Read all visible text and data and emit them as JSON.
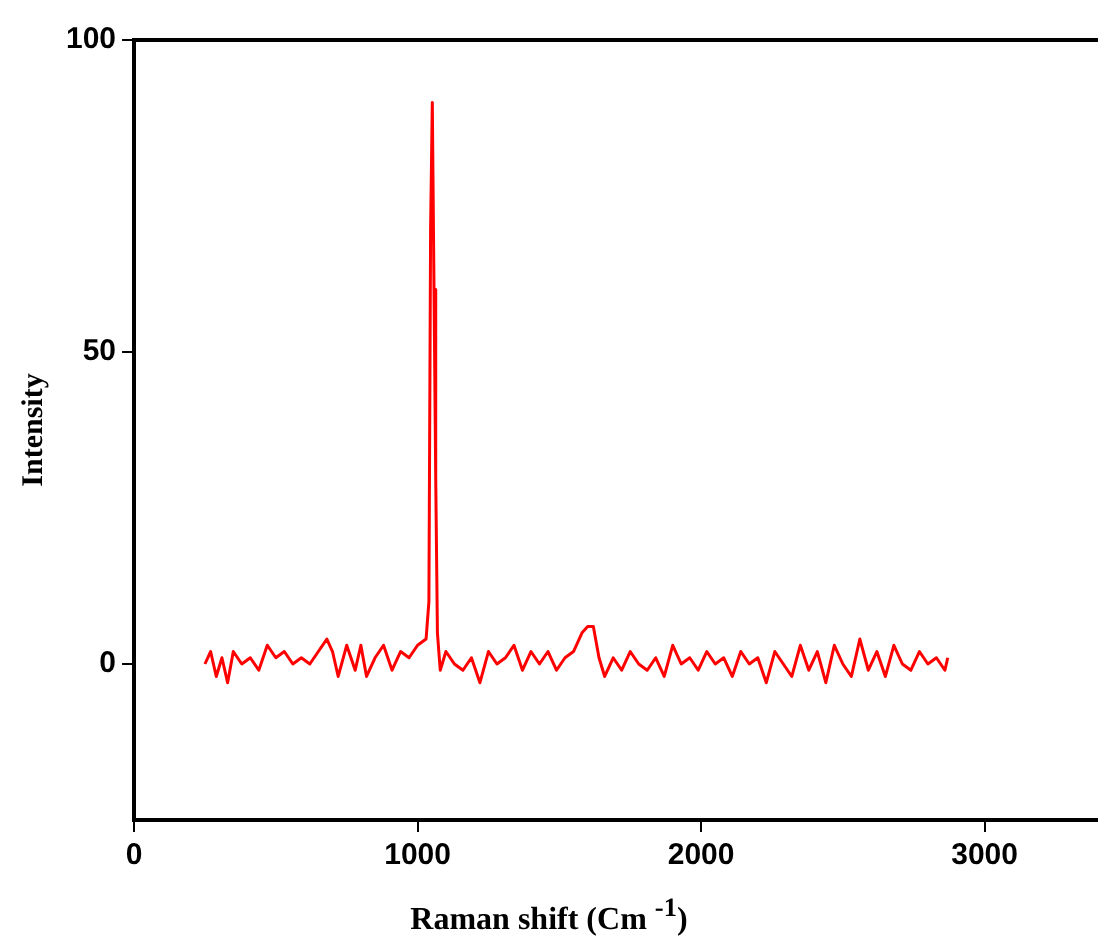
{
  "chart_data": {
    "type": "line",
    "xlabel": "Raman shift (Cm $^{-1}$)",
    "ylabel": "Intensity",
    "xlim": [
      0,
      3400
    ],
    "xticks": [
      0,
      1000,
      2000,
      3000
    ],
    "ylim": [
      -25,
      100
    ],
    "yticks": [
      0,
      50,
      100
    ],
    "grid": false,
    "legend": false,
    "marker": "none",
    "line_style": "solid",
    "series": [
      {
        "color": "#ff0000",
        "x": [
          250,
          270,
          290,
          310,
          330,
          350,
          380,
          410,
          440,
          470,
          500,
          530,
          560,
          590,
          620,
          650,
          680,
          700,
          720,
          750,
          780,
          800,
          820,
          850,
          880,
          910,
          940,
          970,
          1000,
          1030,
          1040,
          1046,
          1052,
          1058,
          1064,
          1070,
          1080,
          1100,
          1130,
          1160,
          1190,
          1220,
          1250,
          1280,
          1310,
          1340,
          1370,
          1400,
          1430,
          1460,
          1490,
          1520,
          1550,
          1580,
          1600,
          1620,
          1640,
          1660,
          1690,
          1720,
          1750,
          1780,
          1810,
          1840,
          1870,
          1900,
          1930,
          1960,
          1990,
          2020,
          2050,
          2080,
          2110,
          2140,
          2170,
          2200,
          2230,
          2260,
          2290,
          2320,
          2350,
          2380,
          2410,
          2440,
          2470,
          2500,
          2530,
          2560,
          2590,
          2620,
          2650,
          2680,
          2710,
          2740,
          2770,
          2800,
          2830,
          2860,
          2870
        ],
        "values": [
          0,
          2,
          -2,
          1,
          -3,
          2,
          0,
          1,
          -1,
          3,
          1,
          2,
          0,
          1,
          0,
          2,
          4,
          2,
          -2,
          3,
          -1,
          3,
          -2,
          1,
          3,
          -1,
          2,
          1,
          3,
          4,
          10,
          70,
          90,
          60,
          30,
          5,
          -1,
          2,
          0,
          -1,
          1,
          -3,
          2,
          0,
          1,
          3,
          -1,
          2,
          0,
          2,
          -1,
          1,
          2,
          5,
          6,
          6,
          1,
          -2,
          1,
          -1,
          2,
          0,
          -1,
          1,
          -2,
          3,
          0,
          1,
          -1,
          2,
          0,
          1,
          -2,
          2,
          0,
          1,
          -3,
          2,
          0,
          -2,
          3,
          -1,
          2,
          -3,
          3,
          0,
          -2,
          4,
          -1,
          2,
          -2,
          3,
          0,
          -1,
          2,
          0,
          1,
          -1,
          1
        ]
      }
    ]
  }
}
